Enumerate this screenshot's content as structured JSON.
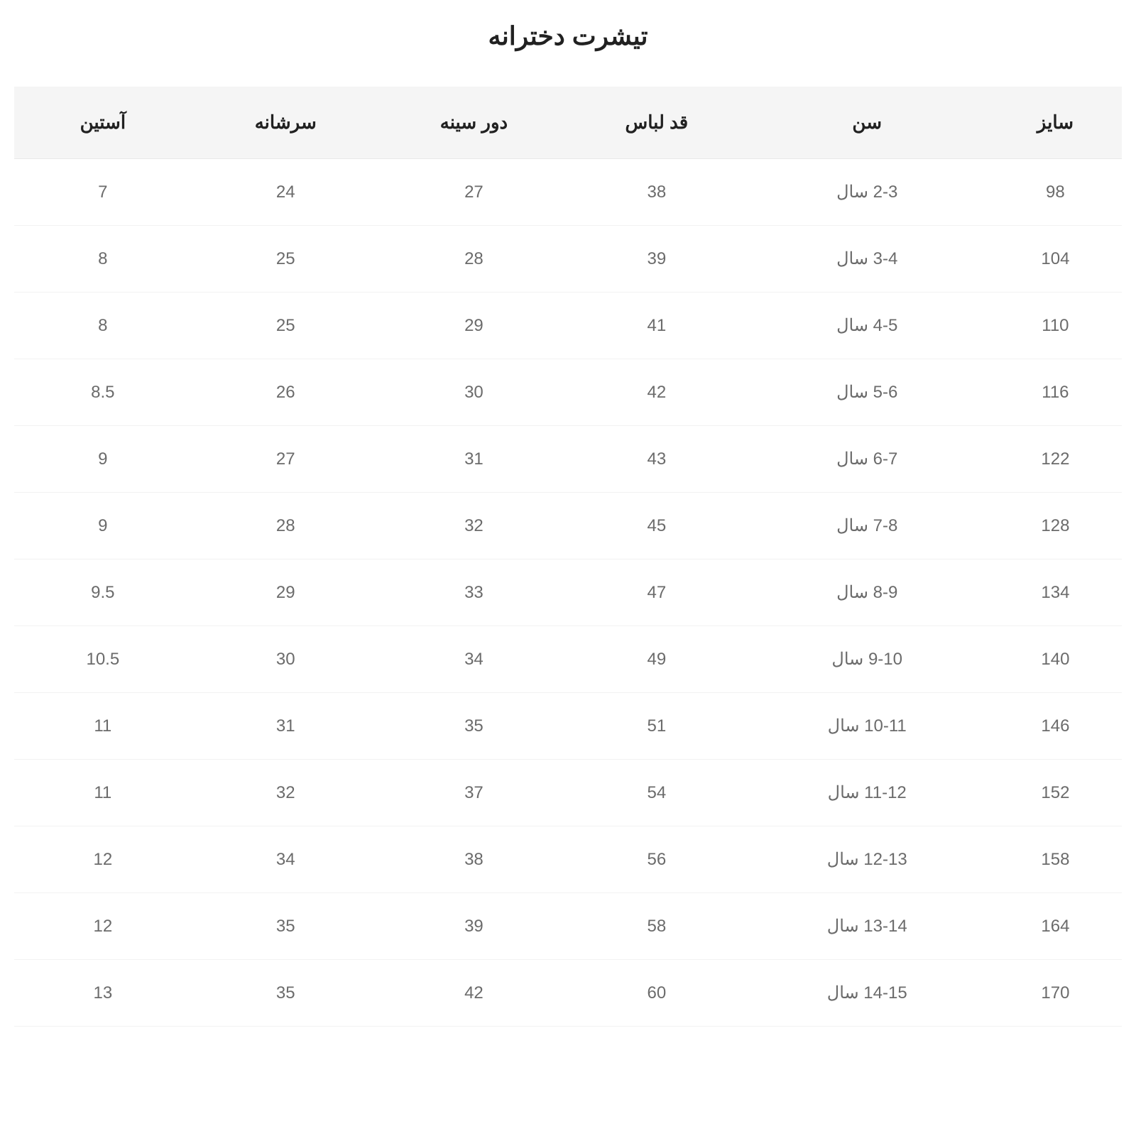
{
  "title": "تیشرت دخترانه",
  "table": {
    "type": "table",
    "background_color": "#ffffff",
    "header_bg_color": "#f5f5f5",
    "border_color": "#f2f2f2",
    "header_text_color": "#212121",
    "cell_text_color": "#6b6b6b",
    "title_fontsize": 36,
    "header_fontsize": 26,
    "cell_fontsize": 24,
    "columns": [
      "سایز",
      "سن",
      "قد لباس",
      "دور سینه",
      "سرشانه",
      "آستین"
    ],
    "rows": [
      [
        "98",
        "2-3 سال",
        "38",
        "27",
        "24",
        "7"
      ],
      [
        "104",
        "3-4 سال",
        "39",
        "28",
        "25",
        "8"
      ],
      [
        "110",
        "4-5 سال",
        "41",
        "29",
        "25",
        "8"
      ],
      [
        "116",
        "5-6 سال",
        "42",
        "30",
        "26",
        "8.5"
      ],
      [
        "122",
        "6-7 سال",
        "43",
        "31",
        "27",
        "9"
      ],
      [
        "128",
        "7-8 سال",
        "45",
        "32",
        "28",
        "9"
      ],
      [
        "134",
        "8-9 سال",
        "47",
        "33",
        "29",
        "9.5"
      ],
      [
        "140",
        "9-10 سال",
        "49",
        "34",
        "30",
        "10.5"
      ],
      [
        "146",
        "10-11 سال",
        "51",
        "35",
        "31",
        "11"
      ],
      [
        "152",
        "11-12 سال",
        "54",
        "37",
        "32",
        "11"
      ],
      [
        "158",
        "12-13 سال",
        "56",
        "38",
        "34",
        "12"
      ],
      [
        "164",
        "13-14 سال",
        "58",
        "39",
        "35",
        "12"
      ],
      [
        "170",
        "14-15 سال",
        "60",
        "42",
        "35",
        "13"
      ]
    ]
  }
}
